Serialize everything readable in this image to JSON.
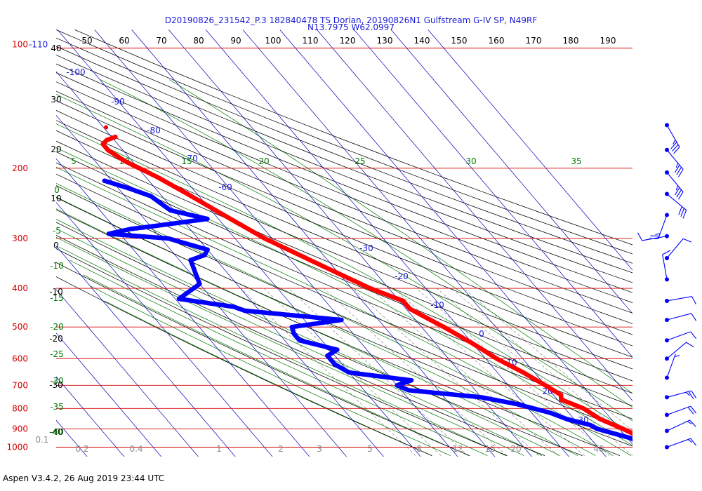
{
  "title_line1": "D20190826_231542_P.3 182840478 TS Dorian, 20190826N1 Gulfstream G-IV SP, N49RF",
  "title_line2": "N13.7975 W62.0997",
  "footer": "Aspen V3.4.2, 26 Aug 2019  23:44 UTC",
  "colors": {
    "isobar": "#d40000",
    "temperature": "#ff0000",
    "dewpoint": "#0000ff",
    "isotherm": "#0000b0",
    "dry_adiabat": "#000000",
    "moist_adiabat": "#007a00",
    "mixing_ratio": "#8a8a8a",
    "title": "#1a1ad6"
  },
  "chart_data": {
    "type": "skew-t",
    "pressure_labels": [
      "100",
      "200",
      "300",
      "400",
      "500",
      "600",
      "700",
      "800",
      "900",
      "1000"
    ],
    "pressure_top_label": "-110",
    "pressure_levels_hpa": [
      100,
      200,
      300,
      400,
      500,
      600,
      700,
      800,
      900,
      1000
    ],
    "top_axis_labels": [
      "50",
      "60",
      "70",
      "80",
      "90",
      "100",
      "110",
      "120",
      "130",
      "140",
      "150",
      "160",
      "170",
      "180",
      "190"
    ],
    "left_axis_labels": [
      "40",
      "30",
      "20",
      "10",
      "0",
      "-10",
      "-20",
      "-30",
      "-40"
    ],
    "isotherm_labels": [
      "-100",
      "-90",
      "-80",
      "-70",
      "-60",
      "-30",
      "-20",
      "-10",
      "0",
      "10",
      "20",
      "30",
      "40"
    ],
    "moist_adiabat_labels": [
      "5",
      "10",
      "15",
      "20",
      "25",
      "30",
      "35"
    ],
    "left_green_labels": [
      "0",
      "-5",
      "-10",
      "-15",
      "-20",
      "-25",
      "-30",
      "-35",
      "-40"
    ],
    "mixing_ratio_labels": [
      "0.1",
      "0.2",
      "0.4",
      "1",
      "2",
      "3",
      "5",
      "8",
      "12",
      "16",
      "20"
    ],
    "temperature_profile": [
      {
        "p": 167,
        "t": -49
      },
      {
        "p": 170,
        "t": -52
      },
      {
        "p": 174,
        "t": -54
      },
      {
        "p": 180,
        "t": -54
      },
      {
        "p": 192,
        "t": -52
      },
      {
        "p": 210,
        "t": -47
      },
      {
        "p": 230,
        "t": -43
      },
      {
        "p": 260,
        "t": -38
      },
      {
        "p": 300,
        "t": -32
      },
      {
        "p": 350,
        "t": -23
      },
      {
        "p": 400,
        "t": -15
      },
      {
        "p": 430,
        "t": -9
      },
      {
        "p": 450,
        "t": -9
      },
      {
        "p": 470,
        "t": -7
      },
      {
        "p": 500,
        "t": -4
      },
      {
        "p": 550,
        "t": 0
      },
      {
        "p": 600,
        "t": 3
      },
      {
        "p": 650,
        "t": 7
      },
      {
        "p": 700,
        "t": 10
      },
      {
        "p": 740,
        "t": 12
      },
      {
        "p": 760,
        "t": 11
      },
      {
        "p": 800,
        "t": 15
      },
      {
        "p": 850,
        "t": 17
      },
      {
        "p": 900,
        "t": 21
      },
      {
        "p": 950,
        "t": 24
      },
      {
        "p": 1005,
        "t": 27.5
      }
    ],
    "dewpoint_profile": [
      {
        "p": 215,
        "t": -62
      },
      {
        "p": 225,
        "t": -57
      },
      {
        "p": 235,
        "t": -53
      },
      {
        "p": 255,
        "t": -51
      },
      {
        "p": 268,
        "t": -43
      },
      {
        "p": 280,
        "t": -60
      },
      {
        "p": 284,
        "t": -66
      },
      {
        "p": 292,
        "t": -73
      },
      {
        "p": 300,
        "t": -58
      },
      {
        "p": 315,
        "t": -52
      },
      {
        "p": 320,
        "t": -50
      },
      {
        "p": 330,
        "t": -52
      },
      {
        "p": 340,
        "t": -57
      },
      {
        "p": 390,
        "t": -60
      },
      {
        "p": 425,
        "t": -69
      },
      {
        "p": 445,
        "t": -56
      },
      {
        "p": 455,
        "t": -54
      },
      {
        "p": 480,
        "t": -30
      },
      {
        "p": 500,
        "t": -45
      },
      {
        "p": 520,
        "t": -46
      },
      {
        "p": 540,
        "t": -46
      },
      {
        "p": 570,
        "t": -38
      },
      {
        "p": 590,
        "t": -42
      },
      {
        "p": 620,
        "t": -42
      },
      {
        "p": 650,
        "t": -40
      },
      {
        "p": 680,
        "t": -25
      },
      {
        "p": 700,
        "t": -30
      },
      {
        "p": 720,
        "t": -28
      },
      {
        "p": 750,
        "t": -10
      },
      {
        "p": 780,
        "t": -2
      },
      {
        "p": 820,
        "t": 5
      },
      {
        "p": 850,
        "t": 8
      },
      {
        "p": 880,
        "t": 13
      },
      {
        "p": 900,
        "t": 14
      },
      {
        "p": 950,
        "t": 21
      },
      {
        "p": 1010,
        "t": 23
      }
    ],
    "wind_barbs": [
      {
        "p": 156,
        "speed": 35,
        "dir": 150
      },
      {
        "p": 180,
        "speed": 35,
        "dir": 140
      },
      {
        "p": 205,
        "speed": 35,
        "dir": 140
      },
      {
        "p": 232,
        "speed": 30,
        "dir": 130
      },
      {
        "p": 262,
        "speed": 25,
        "dir": 200
      },
      {
        "p": 296,
        "speed": 10,
        "dir": 260
      },
      {
        "p": 336,
        "speed": 10,
        "dir": 40
      },
      {
        "p": 380,
        "speed": 10,
        "dir": 350
      },
      {
        "p": 430,
        "speed": 10,
        "dir": 80
      },
      {
        "p": 480,
        "speed": 10,
        "dir": 75
      },
      {
        "p": 540,
        "speed": 10,
        "dir": 70
      },
      {
        "p": 600,
        "speed": 10,
        "dir": 50
      },
      {
        "p": 670,
        "speed": 5,
        "dir": 20
      },
      {
        "p": 750,
        "speed": 25,
        "dir": 75
      },
      {
        "p": 830,
        "speed": 20,
        "dir": 70
      },
      {
        "p": 910,
        "speed": 15,
        "dir": 65
      },
      {
        "p": 1000,
        "speed": 15,
        "dir": 70
      }
    ]
  }
}
